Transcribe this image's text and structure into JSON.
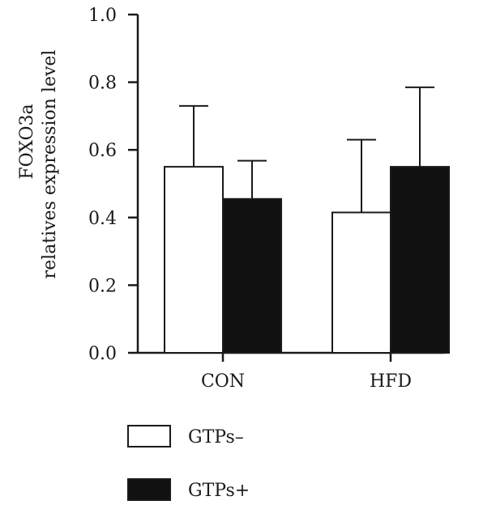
{
  "chart_data": {
    "type": "bar",
    "title": "",
    "xlabel": "",
    "ylabel": [
      "FOXO3a",
      "relatives expression level"
    ],
    "ylim": [
      0,
      1.0
    ],
    "yticks": [
      "0.0",
      "0.2",
      "0.4",
      "0.6",
      "0.8",
      "1.0"
    ],
    "categories": [
      "CON",
      "HFD"
    ],
    "series": [
      {
        "name": "GTPs–",
        "color": "#ffffff",
        "values": [
          0.55,
          0.415
        ],
        "errors": [
          0.18,
          0.215
        ]
      },
      {
        "name": "GTPs+",
        "color": "#111111",
        "values": [
          0.455,
          0.55
        ],
        "errors": [
          0.113,
          0.235
        ]
      }
    ],
    "error_bars": "upper",
    "grid": false,
    "legend_position": "bottom-left"
  }
}
